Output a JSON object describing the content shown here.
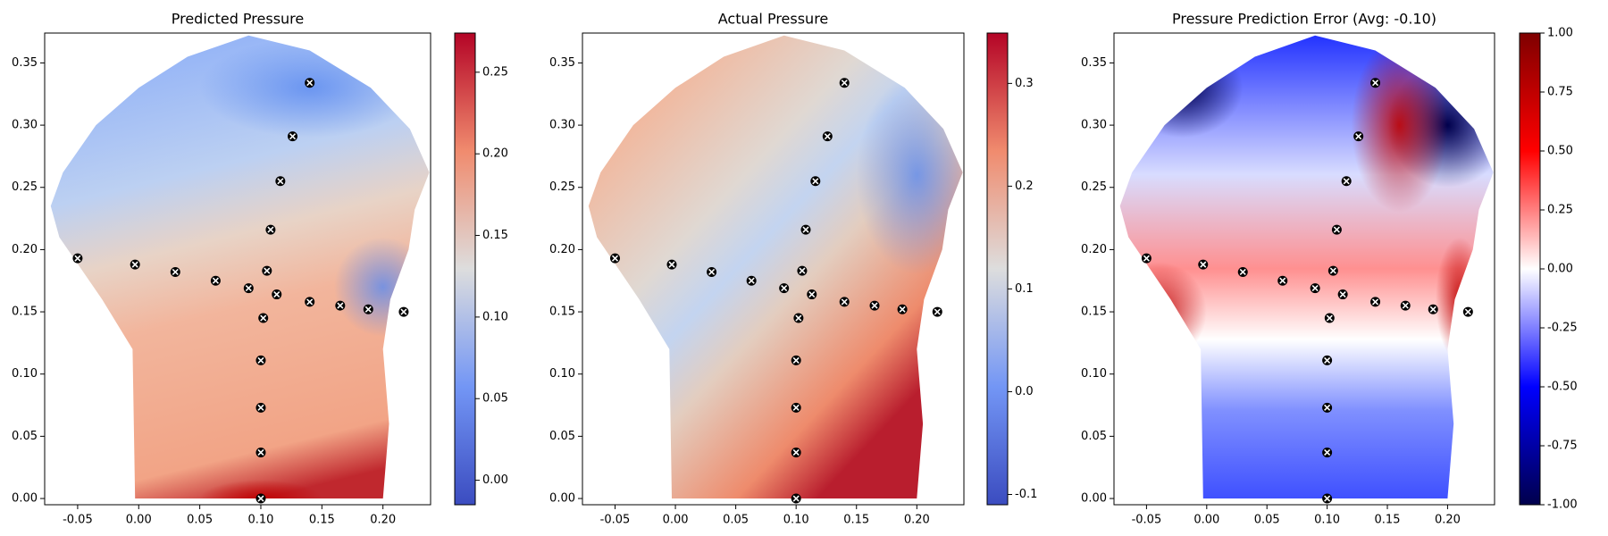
{
  "chart_data": [
    {
      "type": "scatter",
      "title": "Predicted Pressure",
      "x": [
        -0.05,
        -0.003,
        0.03,
        0.063,
        0.09,
        0.105,
        0.113,
        0.102,
        0.14,
        0.165,
        0.188,
        0.217,
        0.108,
        0.116,
        0.126,
        0.14,
        0.1,
        0.1,
        0.1,
        0.1
      ],
      "y": [
        0.193,
        0.188,
        0.182,
        0.175,
        0.169,
        0.183,
        0.164,
        0.145,
        0.158,
        0.155,
        0.152,
        0.15,
        0.216,
        0.255,
        0.291,
        0.334,
        0.111,
        0.073,
        0.037,
        0.0
      ],
      "xlim": [
        -0.077,
        0.239
      ],
      "ylim": [
        -0.005,
        0.374
      ],
      "xticks": [
        -0.05,
        {
          "value": 0,
          "label": "0.00"
        },
        0.05,
        {
          "value": 0.1,
          "label": "0.10"
        },
        0.15,
        {
          "value": 0.2,
          "label": "0.20"
        }
      ],
      "yticks": [
        {
          "value": 0,
          "label": "0.00"
        },
        0.05,
        {
          "value": 0.1,
          "label": "0.10"
        },
        0.15,
        {
          "value": 0.2,
          "label": "0.20"
        },
        0.25,
        {
          "value": 0.3,
          "label": "0.30"
        },
        0.35
      ],
      "colorbar": {
        "colormap": "coolwarm",
        "lim": [
          -0.015,
          0.274
        ],
        "ticks": [
          {
            "value": 0,
            "label": "0.00"
          },
          0.05,
          {
            "value": 0.1,
            "label": "0.10"
          },
          0.15,
          {
            "value": 0.2,
            "label": "0.20"
          },
          0.25
        ]
      }
    },
    {
      "type": "scatter",
      "title": "Actual Pressure",
      "x": [
        -0.05,
        -0.003,
        0.03,
        0.063,
        0.09,
        0.105,
        0.113,
        0.102,
        0.14,
        0.165,
        0.188,
        0.217,
        0.108,
        0.116,
        0.126,
        0.14,
        0.1,
        0.1,
        0.1,
        0.1
      ],
      "y": [
        0.193,
        0.188,
        0.182,
        0.175,
        0.169,
        0.183,
        0.164,
        0.145,
        0.158,
        0.155,
        0.152,
        0.15,
        0.216,
        0.255,
        0.291,
        0.334,
        0.111,
        0.073,
        0.037,
        0.0
      ],
      "xlim": [
        -0.077,
        0.239
      ],
      "ylim": [
        -0.005,
        0.374
      ],
      "xticks": [
        -0.05,
        {
          "value": 0,
          "label": "0.00"
        },
        0.05,
        {
          "value": 0.1,
          "label": "0.10"
        },
        0.15,
        {
          "value": 0.2,
          "label": "0.20"
        }
      ],
      "yticks": [
        {
          "value": 0,
          "label": "0.00"
        },
        0.05,
        {
          "value": 0.1,
          "label": "0.10"
        },
        0.15,
        {
          "value": 0.2,
          "label": "0.20"
        },
        0.25,
        {
          "value": 0.3,
          "label": "0.30"
        },
        0.35
      ],
      "colorbar": {
        "colormap": "coolwarm",
        "lim": [
          -0.11,
          0.349
        ],
        "ticks": [
          -0.1,
          {
            "value": 0,
            "label": "0.0"
          },
          0.1,
          0.2,
          0.3
        ]
      }
    },
    {
      "type": "scatter",
      "title": "Pressure Prediction Error (Avg: -0.10)",
      "x": [
        -0.05,
        -0.003,
        0.03,
        0.063,
        0.09,
        0.105,
        0.113,
        0.102,
        0.14,
        0.165,
        0.188,
        0.217,
        0.108,
        0.116,
        0.126,
        0.14,
        0.1,
        0.1,
        0.1,
        0.1
      ],
      "y": [
        0.193,
        0.188,
        0.182,
        0.175,
        0.169,
        0.183,
        0.164,
        0.145,
        0.158,
        0.155,
        0.152,
        0.15,
        0.216,
        0.255,
        0.291,
        0.334,
        0.111,
        0.073,
        0.037,
        0.0
      ],
      "xlim": [
        -0.077,
        0.239
      ],
      "ylim": [
        -0.005,
        0.374
      ],
      "xticks": [
        -0.05,
        {
          "value": 0,
          "label": "0.00"
        },
        0.05,
        {
          "value": 0.1,
          "label": "0.10"
        },
        0.15,
        {
          "value": 0.2,
          "label": "0.20"
        }
      ],
      "yticks": [
        {
          "value": 0,
          "label": "0.00"
        },
        0.05,
        {
          "value": 0.1,
          "label": "0.10"
        },
        0.15,
        {
          "value": 0.2,
          "label": "0.20"
        },
        0.25,
        {
          "value": 0.3,
          "label": "0.30"
        },
        0.35
      ],
      "colorbar": {
        "colormap": "seismic",
        "lim": [
          -1,
          1
        ],
        "ticks": [
          {
            "value": -1,
            "label": "-1.00"
          },
          {
            "value": -0.75,
            "label": "-0.75"
          },
          {
            "value": -0.5,
            "label": "-0.50"
          },
          {
            "value": -0.25,
            "label": "-0.25"
          },
          {
            "value": 0,
            "label": "0.00"
          },
          {
            "value": 0.25,
            "label": "0.25"
          },
          {
            "value": 0.5,
            "label": "0.50"
          },
          {
            "value": 0.75,
            "label": "0.75"
          },
          {
            "value": 1,
            "label": "1.00"
          }
        ]
      }
    }
  ]
}
